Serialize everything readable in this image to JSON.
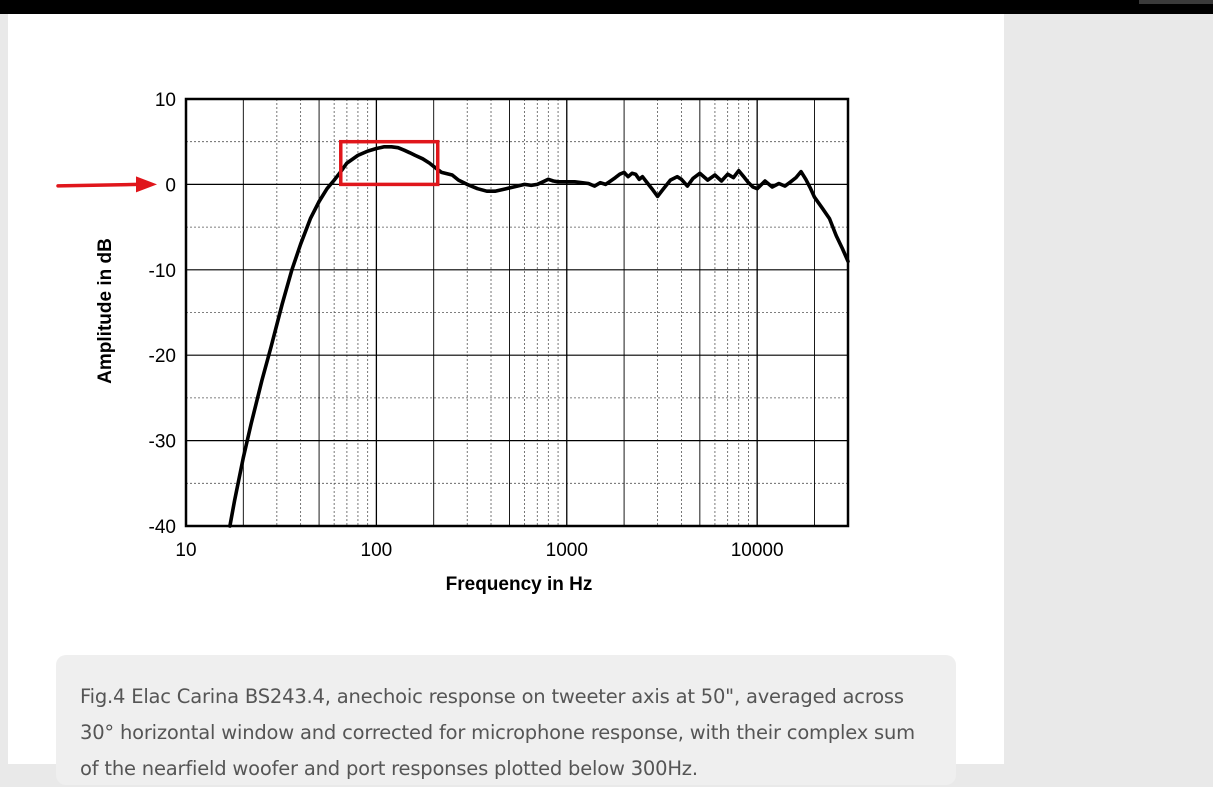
{
  "sidebar": {},
  "caption": "Fig.4 Elac Carina BS243.4, anechoic response on tweeter axis at 50\", averaged across 30° horizontal window and corrected for microphone response, with their complex sum of the nearfield woofer and port responses plotted below 300Hz.",
  "chart_data": {
    "type": "line",
    "title": "",
    "xlabel": "Frequency in Hz",
    "ylabel": "Amplitude in dB",
    "x_scale": "log",
    "xlim": [
      10,
      30000
    ],
    "ylim": [
      -40,
      10
    ],
    "x_ticks": [
      "10",
      "100",
      "1000",
      "10000"
    ],
    "y_ticks": [
      "10",
      "0",
      "-10",
      "-20",
      "-30",
      "-40"
    ],
    "grid": true,
    "series": [
      {
        "color": "#000000",
        "points": [
          [
            17,
            -40
          ],
          [
            18,
            -37
          ],
          [
            20,
            -32
          ],
          [
            22,
            -28
          ],
          [
            25,
            -23
          ],
          [
            28,
            -19
          ],
          [
            32,
            -14
          ],
          [
            36,
            -10
          ],
          [
            40,
            -7
          ],
          [
            45,
            -4
          ],
          [
            50,
            -2
          ],
          [
            55,
            -0.5
          ],
          [
            60,
            0.5
          ],
          [
            65,
            1.5
          ],
          [
            70,
            2.5
          ],
          [
            80,
            3.4
          ],
          [
            90,
            3.9
          ],
          [
            100,
            4.2
          ],
          [
            110,
            4.4
          ],
          [
            120,
            4.4
          ],
          [
            130,
            4.3
          ],
          [
            140,
            4
          ],
          [
            150,
            3.7
          ],
          [
            160,
            3.4
          ],
          [
            175,
            3
          ],
          [
            190,
            2.5
          ],
          [
            200,
            2.1
          ],
          [
            220,
            1.4
          ],
          [
            250,
            1.1
          ],
          [
            270,
            0.5
          ],
          [
            300,
            0
          ],
          [
            340,
            -0.5
          ],
          [
            380,
            -0.8
          ],
          [
            420,
            -0.8
          ],
          [
            480,
            -0.5
          ],
          [
            550,
            -0.2
          ],
          [
            600,
            0
          ],
          [
            650,
            -0.1
          ],
          [
            700,
            0
          ],
          [
            750,
            0.3
          ],
          [
            800,
            0.6
          ],
          [
            850,
            0.4
          ],
          [
            900,
            0.3
          ],
          [
            1000,
            0.3
          ],
          [
            1100,
            0.3
          ],
          [
            1200,
            0.2
          ],
          [
            1300,
            0.1
          ],
          [
            1400,
            -0.2
          ],
          [
            1500,
            0.2
          ],
          [
            1600,
            0
          ],
          [
            1700,
            0.4
          ],
          [
            1800,
            0.8
          ],
          [
            1900,
            1.2
          ],
          [
            2000,
            1.4
          ],
          [
            2100,
            0.9
          ],
          [
            2200,
            1.3
          ],
          [
            2300,
            1.2
          ],
          [
            2400,
            0.6
          ],
          [
            2500,
            0.9
          ],
          [
            2600,
            0.4
          ],
          [
            2800,
            -0.5
          ],
          [
            3000,
            -1.4
          ],
          [
            3200,
            -0.6
          ],
          [
            3500,
            0.5
          ],
          [
            3800,
            0.9
          ],
          [
            4000,
            0.6
          ],
          [
            4300,
            -0.2
          ],
          [
            4600,
            0.7
          ],
          [
            5000,
            1.3
          ],
          [
            5500,
            0.5
          ],
          [
            6000,
            1.1
          ],
          [
            6500,
            0.4
          ],
          [
            7000,
            1.2
          ],
          [
            7500,
            0.8
          ],
          [
            8000,
            1.6
          ],
          [
            8500,
            0.9
          ],
          [
            9000,
            0.2
          ],
          [
            9500,
            -0.3
          ],
          [
            10000,
            -0.5
          ],
          [
            11000,
            0.4
          ],
          [
            12000,
            -0.3
          ],
          [
            13000,
            0.1
          ],
          [
            14000,
            -0.2
          ],
          [
            15000,
            0.3
          ],
          [
            16000,
            0.8
          ],
          [
            17000,
            1.5
          ],
          [
            18000,
            0.6
          ],
          [
            19000,
            -0.4
          ],
          [
            20000,
            -1.5
          ],
          [
            22000,
            -2.8
          ],
          [
            24000,
            -4
          ],
          [
            26000,
            -6
          ],
          [
            28000,
            -7.5
          ],
          [
            30000,
            -9
          ]
        ]
      }
    ],
    "annotations": [
      {
        "type": "highlight-box",
        "color": "#e0161b",
        "x": [
          65,
          210
        ],
        "y": [
          0,
          5
        ]
      },
      {
        "type": "arrow",
        "color": "#e0161b",
        "points_to_y": 0
      }
    ]
  }
}
